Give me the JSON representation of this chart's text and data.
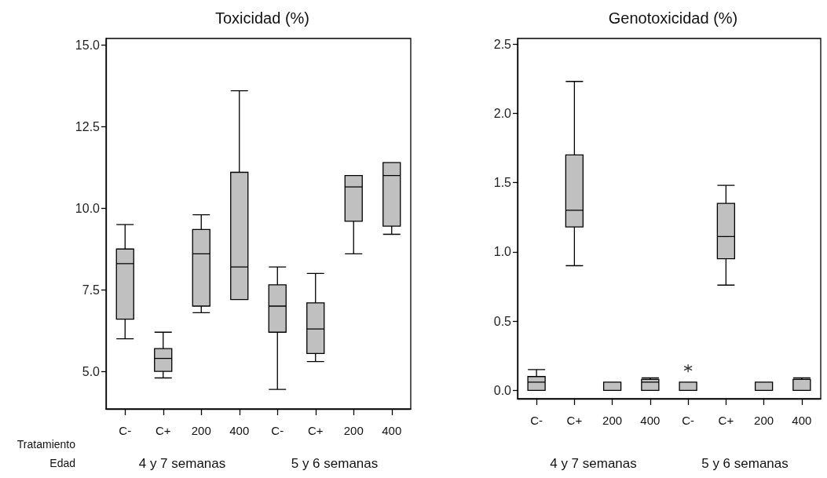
{
  "chart_data": [
    {
      "type": "box",
      "title": "Toxicidad (%)",
      "categories": [
        "C-",
        "C+",
        "200",
        "400",
        "C-",
        "C+",
        "200",
        "400"
      ],
      "ylim": [
        3.85,
        15.2
      ],
      "yticks": [
        {
          "value": 5,
          "label": "5.0"
        },
        {
          "value": 7.5,
          "label": "7.5"
        },
        {
          "value": 10,
          "label": "10.0"
        },
        {
          "value": 12.5,
          "label": "12.5"
        },
        {
          "value": 15,
          "label": "15.0"
        }
      ],
      "grid": false,
      "series": [
        {
          "color": "#c0c0c0",
          "boxes": [
            {
              "low": 6.0,
              "q1": 6.6,
              "median": 8.3,
              "q3": 8.75,
              "high": 9.5
            },
            {
              "low": 4.8,
              "q1": 5.0,
              "median": 5.4,
              "q3": 5.7,
              "high": 6.2
            },
            {
              "low": 6.8,
              "q1": 7.0,
              "median": 8.6,
              "q3": 9.35,
              "high": 9.8
            },
            {
              "low": 7.2,
              "q1": 7.2,
              "median": 8.2,
              "q3": 11.1,
              "high": 13.6
            },
            {
              "low": 4.45,
              "q1": 6.2,
              "median": 7.0,
              "q3": 7.65,
              "high": 8.2
            },
            {
              "low": 5.3,
              "q1": 5.55,
              "median": 6.3,
              "q3": 7.1,
              "high": 8.0
            },
            {
              "low": 8.6,
              "q1": 9.6,
              "median": 10.65,
              "q3": 11.0,
              "high": 11.0
            },
            {
              "low": 9.2,
              "q1": 9.45,
              "median": 11.0,
              "q3": 11.4,
              "high": 11.4
            }
          ]
        }
      ],
      "annotations": [
        "Tratamiento",
        "Edad",
        "4 y 7 semanas",
        "5 y 6 semanas"
      ]
    },
    {
      "type": "box",
      "title": "Genotoxicidad (%)",
      "categories": [
        "C-",
        "C+",
        "200",
        "400",
        "C-",
        "C+",
        "200",
        "400"
      ],
      "ylim": [
        -0.06,
        2.54
      ],
      "yticks": [
        {
          "value": 0,
          "label": "0.0"
        },
        0.5,
        {
          "value": 1,
          "label": "1.0"
        },
        1.5,
        {
          "value": 2,
          "label": "2.0"
        },
        2.5
      ],
      "grid": false,
      "series": [
        {
          "color": "#c0c0c0",
          "boxes": [
            {
              "low": 0,
              "q1": 0,
              "median": 0.06,
              "q3": 0.1,
              "high": 0.15
            },
            {
              "low": 0.9,
              "q1": 1.18,
              "median": 1.3,
              "q3": 1.7,
              "high": 2.23
            },
            {
              "low": 0,
              "q1": 0,
              "median": 0,
              "q3": 0.06,
              "high": 0.06
            },
            {
              "low": 0,
              "q1": 0,
              "median": 0.06,
              "q3": 0.08,
              "high": 0.09
            },
            {
              "low": 0,
              "q1": 0,
              "median": 0,
              "q3": 0.06,
              "high": 0.06,
              "outliers": [
                0.16
              ]
            },
            {
              "low": 0.76,
              "q1": 0.95,
              "median": 1.11,
              "q3": 1.35,
              "high": 1.48
            },
            {
              "low": 0,
              "q1": 0,
              "median": 0,
              "q3": 0.06,
              "high": 0.06
            },
            {
              "low": 0,
              "q1": 0,
              "median": 0,
              "q3": 0.08,
              "high": 0.09
            }
          ]
        }
      ],
      "annotations": [
        "4 y 7 semanas",
        "5 y 6 semanas"
      ]
    }
  ]
}
